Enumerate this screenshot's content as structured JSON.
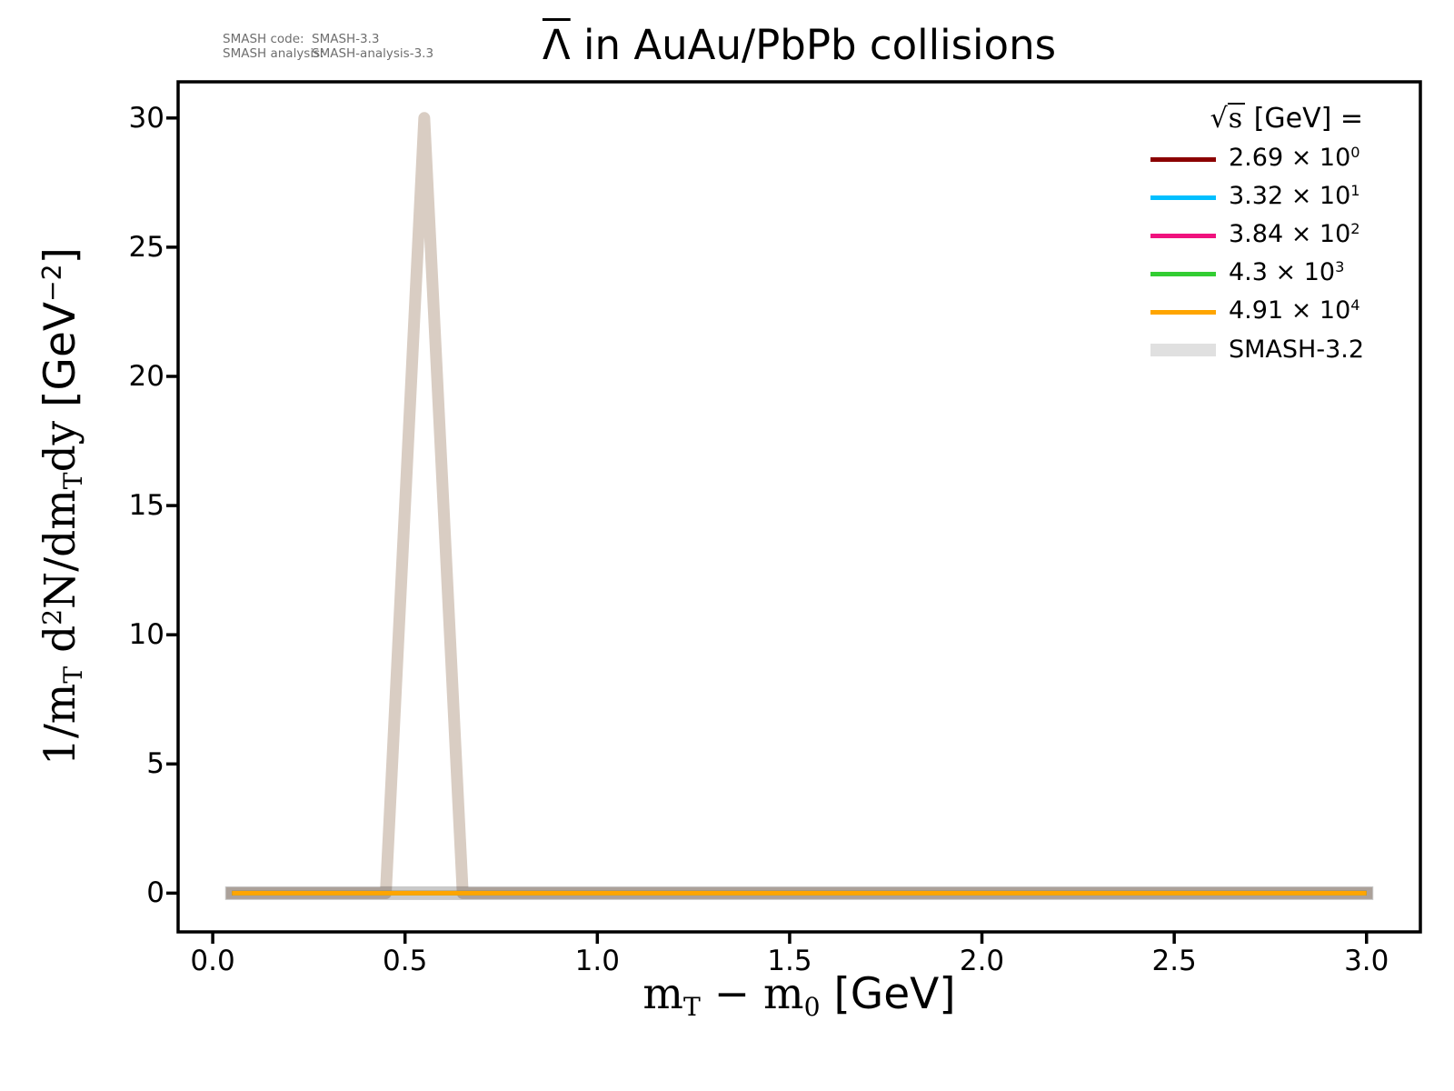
{
  "watermark": {
    "rows": [
      {
        "label": "SMASH code:",
        "value": "SMASH-3.3"
      },
      {
        "label": "SMASH analysis:",
        "value": "SMASH-analysis-3.3"
      }
    ]
  },
  "title": {
    "text": "Λ̄ in AuAu/PbPb collisions",
    "segments": [
      {
        "t": "Λ",
        "cls": "overline"
      },
      {
        "t": " in AuAu/PbPb collisions"
      }
    ]
  },
  "axes": {
    "xlabel_segments": [
      {
        "t": "m",
        "cls": "serif"
      },
      {
        "t": "T",
        "cls": "serif sub"
      },
      {
        "t": " − ",
        "cls": "serif"
      },
      {
        "t": "m",
        "cls": "serif"
      },
      {
        "t": "0",
        "cls": "serif sub"
      },
      {
        "t": " [GeV]",
        "cls": ""
      }
    ],
    "ylabel_segments": [
      {
        "t": "1/m",
        "cls": "serif"
      },
      {
        "t": "T",
        "cls": "serif sub"
      },
      {
        "t": " d",
        "cls": "serif"
      },
      {
        "t": "2",
        "cls": "serif sup"
      },
      {
        "t": "N/dm",
        "cls": "serif"
      },
      {
        "t": "T",
        "cls": "serif sub"
      },
      {
        "t": "dy ",
        "cls": "serif"
      },
      {
        "t": "[GeV",
        "cls": ""
      },
      {
        "t": "−2",
        "cls": "sup"
      },
      {
        "t": "]",
        "cls": ""
      }
    ]
  },
  "legend": {
    "title_segments": [
      {
        "t": "√",
        "cls": "serif"
      },
      {
        "t": "s",
        "cls": "serif radicand"
      },
      {
        "t": "  [GeV] =",
        "cls": ""
      }
    ],
    "entries": [
      {
        "color": "#8b0000",
        "lw": 5,
        "label_segments": [
          {
            "t": "2.69 × 10",
            "cls": ""
          },
          {
            "t": "0",
            "cls": "sup"
          }
        ]
      },
      {
        "color": "#00bfff",
        "lw": 5,
        "label_segments": [
          {
            "t": "3.32 × 10",
            "cls": ""
          },
          {
            "t": "1",
            "cls": "sup"
          }
        ]
      },
      {
        "color": "#f0127e",
        "lw": 5,
        "label_segments": [
          {
            "t": "3.84 × 10",
            "cls": ""
          },
          {
            "t": "2",
            "cls": "sup"
          }
        ]
      },
      {
        "color": "#32cd32",
        "lw": 5,
        "label_segments": [
          {
            "t": "4.3 × 10",
            "cls": ""
          },
          {
            "t": "3",
            "cls": "sup"
          }
        ]
      },
      {
        "color": "#ffa500",
        "lw": 5,
        "label_segments": [
          {
            "t": "4.91 × 10",
            "cls": ""
          },
          {
            "t": "4",
            "cls": "sup"
          }
        ]
      },
      {
        "color": "#e0e0e0",
        "lw": 14,
        "label_segments": [
          {
            "t": "SMASH-3.2",
            "cls": ""
          }
        ]
      }
    ]
  },
  "chart_data": {
    "type": "line",
    "title": "Λ̄ in AuAu/PbPb collisions",
    "xlabel": "m_T − m_0 [GeV]",
    "ylabel": "1/m_T d²N/dm_T dy [GeV⁻²]",
    "legend_title": "√s [GeV] =",
    "legend_position": "upper right",
    "grid": false,
    "xlim": [
      -0.09,
      3.14
    ],
    "ylim": [
      -1.5,
      31.4
    ],
    "x_ticks": [
      {
        "v": 0.0,
        "label": "0.0"
      },
      {
        "v": 0.5,
        "label": "0.5"
      },
      {
        "v": 1.0,
        "label": "1.0"
      },
      {
        "v": 1.5,
        "label": "1.5"
      },
      {
        "v": 2.0,
        "label": "2.0"
      },
      {
        "v": 2.5,
        "label": "2.5"
      },
      {
        "v": 3.0,
        "label": "3.0"
      }
    ],
    "y_ticks": [
      {
        "v": 0,
        "label": "0"
      },
      {
        "v": 5,
        "label": "5"
      },
      {
        "v": 10,
        "label": "10"
      },
      {
        "v": 15,
        "label": "15"
      },
      {
        "v": 20,
        "label": "20"
      },
      {
        "v": 25,
        "label": "25"
      },
      {
        "v": 30,
        "label": "30"
      }
    ],
    "series": [
      {
        "name": "SMASH-3.2 reference (all energies, flat)",
        "color": "#c9c9c9",
        "lw": 15,
        "cap": "square",
        "x": [
          0.05,
          3.0
        ],
        "y": [
          0,
          0
        ]
      },
      {
        "name": "SMASH-3.2 reference, √s = 2.69×10⁰ GeV (peak 30 at 0.55)",
        "color": "#d9cdc3",
        "lw": 13,
        "cap": "square",
        "blend": "multiply",
        "x": [
          0.05,
          0.45,
          0.55,
          0.65,
          3.0
        ],
        "y": [
          0,
          0,
          30,
          0,
          0
        ]
      },
      {
        "name": "√s = 2.69×10⁰ GeV",
        "color": "#8b0000",
        "lw": 5,
        "cap": "butt",
        "x": [
          0.05,
          3.0
        ],
        "y": [
          0,
          0
        ]
      },
      {
        "name": "√s = 3.32×10¹ GeV",
        "color": "#00bfff",
        "lw": 5,
        "cap": "butt",
        "x": [
          0.05,
          3.0
        ],
        "y": [
          0,
          0
        ]
      },
      {
        "name": "√s = 3.84×10² GeV",
        "color": "#f0127e",
        "lw": 5,
        "cap": "butt",
        "x": [
          0.05,
          3.0
        ],
        "y": [
          0,
          0
        ]
      },
      {
        "name": "√s = 4.3×10³ GeV",
        "color": "#32cd32",
        "lw": 5,
        "cap": "butt",
        "x": [
          0.05,
          3.0
        ],
        "y": [
          0,
          0
        ]
      },
      {
        "name": "√s = 4.91×10⁴ GeV",
        "color": "#ffa500",
        "lw": 5,
        "cap": "butt",
        "x": [
          0.05,
          3.0
        ],
        "y": [
          0,
          0
        ]
      }
    ]
  }
}
